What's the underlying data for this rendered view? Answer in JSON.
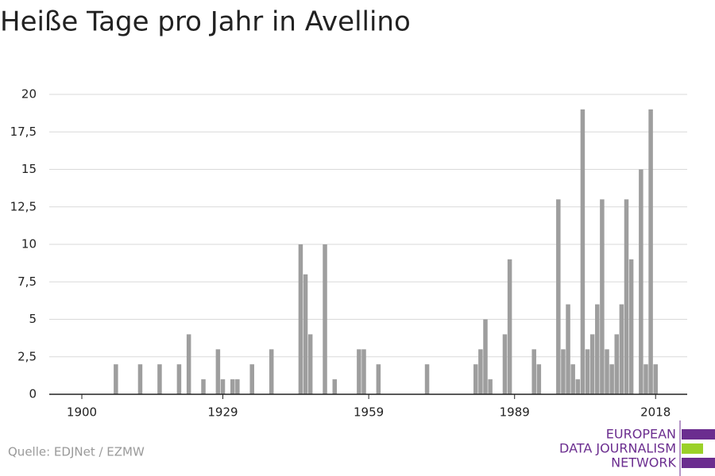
{
  "chart_data": {
    "type": "bar",
    "title": "Heiße Tage pro Jahr in Avellino",
    "x": [
      1907,
      1912,
      1916,
      1920,
      1922,
      1925,
      1928,
      1929,
      1931,
      1932,
      1935,
      1939,
      1945,
      1946,
      1947,
      1950,
      1952,
      1957,
      1958,
      1961,
      1971,
      1981,
      1982,
      1983,
      1984,
      1987,
      1988,
      1993,
      1994,
      1998,
      1999,
      2000,
      2001,
      2002,
      2003,
      2004,
      2005,
      2006,
      2007,
      2008,
      2009,
      2010,
      2011,
      2012,
      2013,
      2015,
      2016,
      2017,
      2018
    ],
    "values": [
      2,
      2,
      2,
      2,
      4,
      1,
      3,
      1,
      1,
      1,
      2,
      3,
      10,
      8,
      4,
      10,
      1,
      3,
      3,
      2,
      2,
      2,
      3,
      5,
      1,
      4,
      9,
      3,
      2,
      13,
      3,
      6,
      2,
      1,
      19,
      3,
      4,
      6,
      13,
      3,
      2,
      4,
      6,
      13,
      9,
      15,
      2,
      19,
      2
    ],
    "color": "#9e9e9e",
    "xlim": [
      1893.3,
      2024.5
    ],
    "xticks": [
      1900,
      1929,
      1959,
      1989,
      2018
    ],
    "ylim": [
      0,
      20
    ],
    "yticks": [
      0,
      {
        "value": 2.5,
        "label": "2,5"
      },
      5,
      {
        "value": 7.5,
        "label": "7,5"
      },
      10,
      {
        "value": 12.5,
        "label": "12,5"
      },
      15,
      {
        "value": 17.5,
        "label": "17,5"
      },
      20
    ],
    "grid": true,
    "source": "Quelle: EDJNet / EZMW",
    "logo": [
      "EUROPEAN",
      "DATA JOURNALISM",
      "NETWORK"
    ]
  }
}
